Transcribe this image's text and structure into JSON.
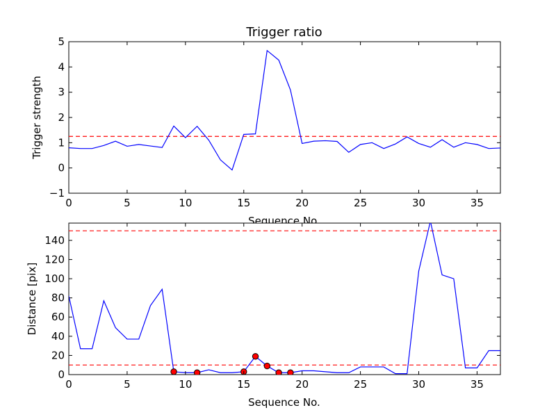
{
  "chart_data": [
    {
      "type": "line",
      "title": "Trigger ratio",
      "xlabel": "Sequence No.",
      "ylabel": "Trigger strength",
      "xlim": [
        0,
        37
      ],
      "ylim": [
        -1,
        5
      ],
      "xticks": [
        0,
        5,
        10,
        15,
        20,
        25,
        30,
        35
      ],
      "yticks": [
        -1,
        0,
        1,
        2,
        3,
        4,
        5
      ],
      "grid": false,
      "colors": {
        "line": "#0000ff",
        "threshold": "#ff0000"
      },
      "series": [
        {
          "x": [
            0,
            1,
            2,
            3,
            4,
            5,
            6,
            7,
            8,
            9,
            10,
            11,
            12,
            13,
            14,
            15,
            16,
            17,
            18,
            19,
            20,
            21,
            22,
            23,
            24,
            25,
            26,
            27,
            28,
            29,
            30,
            31,
            32,
            33,
            34,
            35,
            36,
            37
          ],
          "values": [
            0.8,
            0.77,
            0.77,
            0.89,
            1.06,
            0.86,
            0.93,
            0.87,
            0.81,
            1.66,
            1.2,
            1.65,
            1.1,
            0.32,
            -0.08,
            1.33,
            1.35,
            4.65,
            4.27,
            3.09,
            0.97,
            1.06,
            1.08,
            1.05,
            0.62,
            0.93,
            1.0,
            0.77,
            0.95,
            1.23,
            0.97,
            0.82,
            1.12,
            0.82,
            1.0,
            0.93,
            0.77,
            0.79
          ]
        }
      ],
      "thresholds": [
        1.25
      ]
    },
    {
      "type": "line",
      "title": "",
      "xlabel": "Sequence No.",
      "ylabel": "Distance [pix]",
      "xlim": [
        0,
        37
      ],
      "ylim": [
        0,
        158
      ],
      "xticks": [
        0,
        5,
        10,
        15,
        20,
        25,
        30,
        35
      ],
      "yticks": [
        0,
        20,
        40,
        60,
        80,
        100,
        120,
        140
      ],
      "grid": false,
      "colors": {
        "line": "#0000ff",
        "threshold": "#ff0000",
        "marker": "#ff0000"
      },
      "series": [
        {
          "x": [
            0,
            1,
            2,
            3,
            4,
            5,
            6,
            7,
            8,
            9,
            10,
            11,
            12,
            13,
            14,
            15,
            16,
            17,
            18,
            19,
            20,
            21,
            22,
            23,
            24,
            25,
            26,
            27,
            28,
            29,
            30,
            31,
            32,
            33,
            34,
            35,
            36,
            37
          ],
          "values": [
            82,
            27,
            27,
            77,
            49,
            37,
            37,
            72,
            89,
            3,
            2,
            2,
            5,
            2,
            2,
            3,
            19,
            9,
            2,
            2,
            4,
            4,
            3,
            2,
            2,
            8,
            8,
            8,
            1,
            1,
            108,
            160,
            104,
            100,
            7,
            7,
            25,
            25
          ]
        }
      ],
      "markers": {
        "x": [
          9,
          11,
          15,
          16,
          17,
          18,
          19
        ],
        "values": [
          3,
          2,
          3,
          19,
          9,
          2,
          2
        ]
      },
      "thresholds": [
        150,
        10
      ]
    }
  ]
}
